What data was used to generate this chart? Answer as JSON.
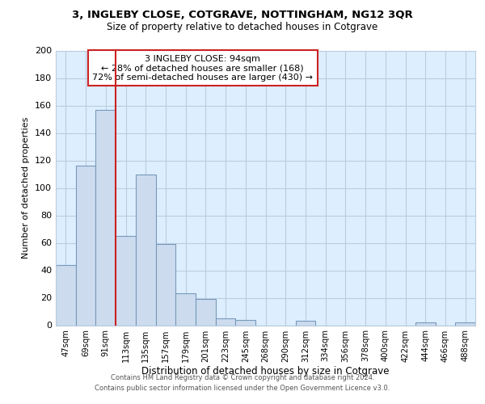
{
  "title1": "3, INGLEBY CLOSE, COTGRAVE, NOTTINGHAM, NG12 3QR",
  "title2": "Size of property relative to detached houses in Cotgrave",
  "xlabel": "Distribution of detached houses by size in Cotgrave",
  "ylabel": "Number of detached properties",
  "bin_labels": [
    "47sqm",
    "69sqm",
    "91sqm",
    "113sqm",
    "135sqm",
    "157sqm",
    "179sqm",
    "201sqm",
    "223sqm",
    "245sqm",
    "268sqm",
    "290sqm",
    "312sqm",
    "334sqm",
    "356sqm",
    "378sqm",
    "400sqm",
    "422sqm",
    "444sqm",
    "466sqm",
    "488sqm"
  ],
  "bar_heights": [
    44,
    116,
    157,
    65,
    110,
    59,
    23,
    19,
    5,
    4,
    0,
    0,
    3,
    0,
    0,
    0,
    0,
    0,
    2,
    0,
    2
  ],
  "bar_color": "#ccdcee",
  "bar_edge_color": "#7799bb",
  "highlight_line_color": "#cc2222",
  "annotation_title": "3 INGLEBY CLOSE: 94sqm",
  "annotation_line1": "← 28% of detached houses are smaller (168)",
  "annotation_line2": "72% of semi-detached houses are larger (430) →",
  "annotation_box_color": "#ffffff",
  "annotation_box_edge": "#cc2222",
  "ylim": [
    0,
    200
  ],
  "yticks": [
    0,
    20,
    40,
    60,
    80,
    100,
    120,
    140,
    160,
    180,
    200
  ],
  "plot_bg": "#ddeeff",
  "grid_color": "#bbccdd",
  "footer1": "Contains HM Land Registry data © Crown copyright and database right 2024.",
  "footer2": "Contains public sector information licensed under the Open Government Licence v3.0."
}
